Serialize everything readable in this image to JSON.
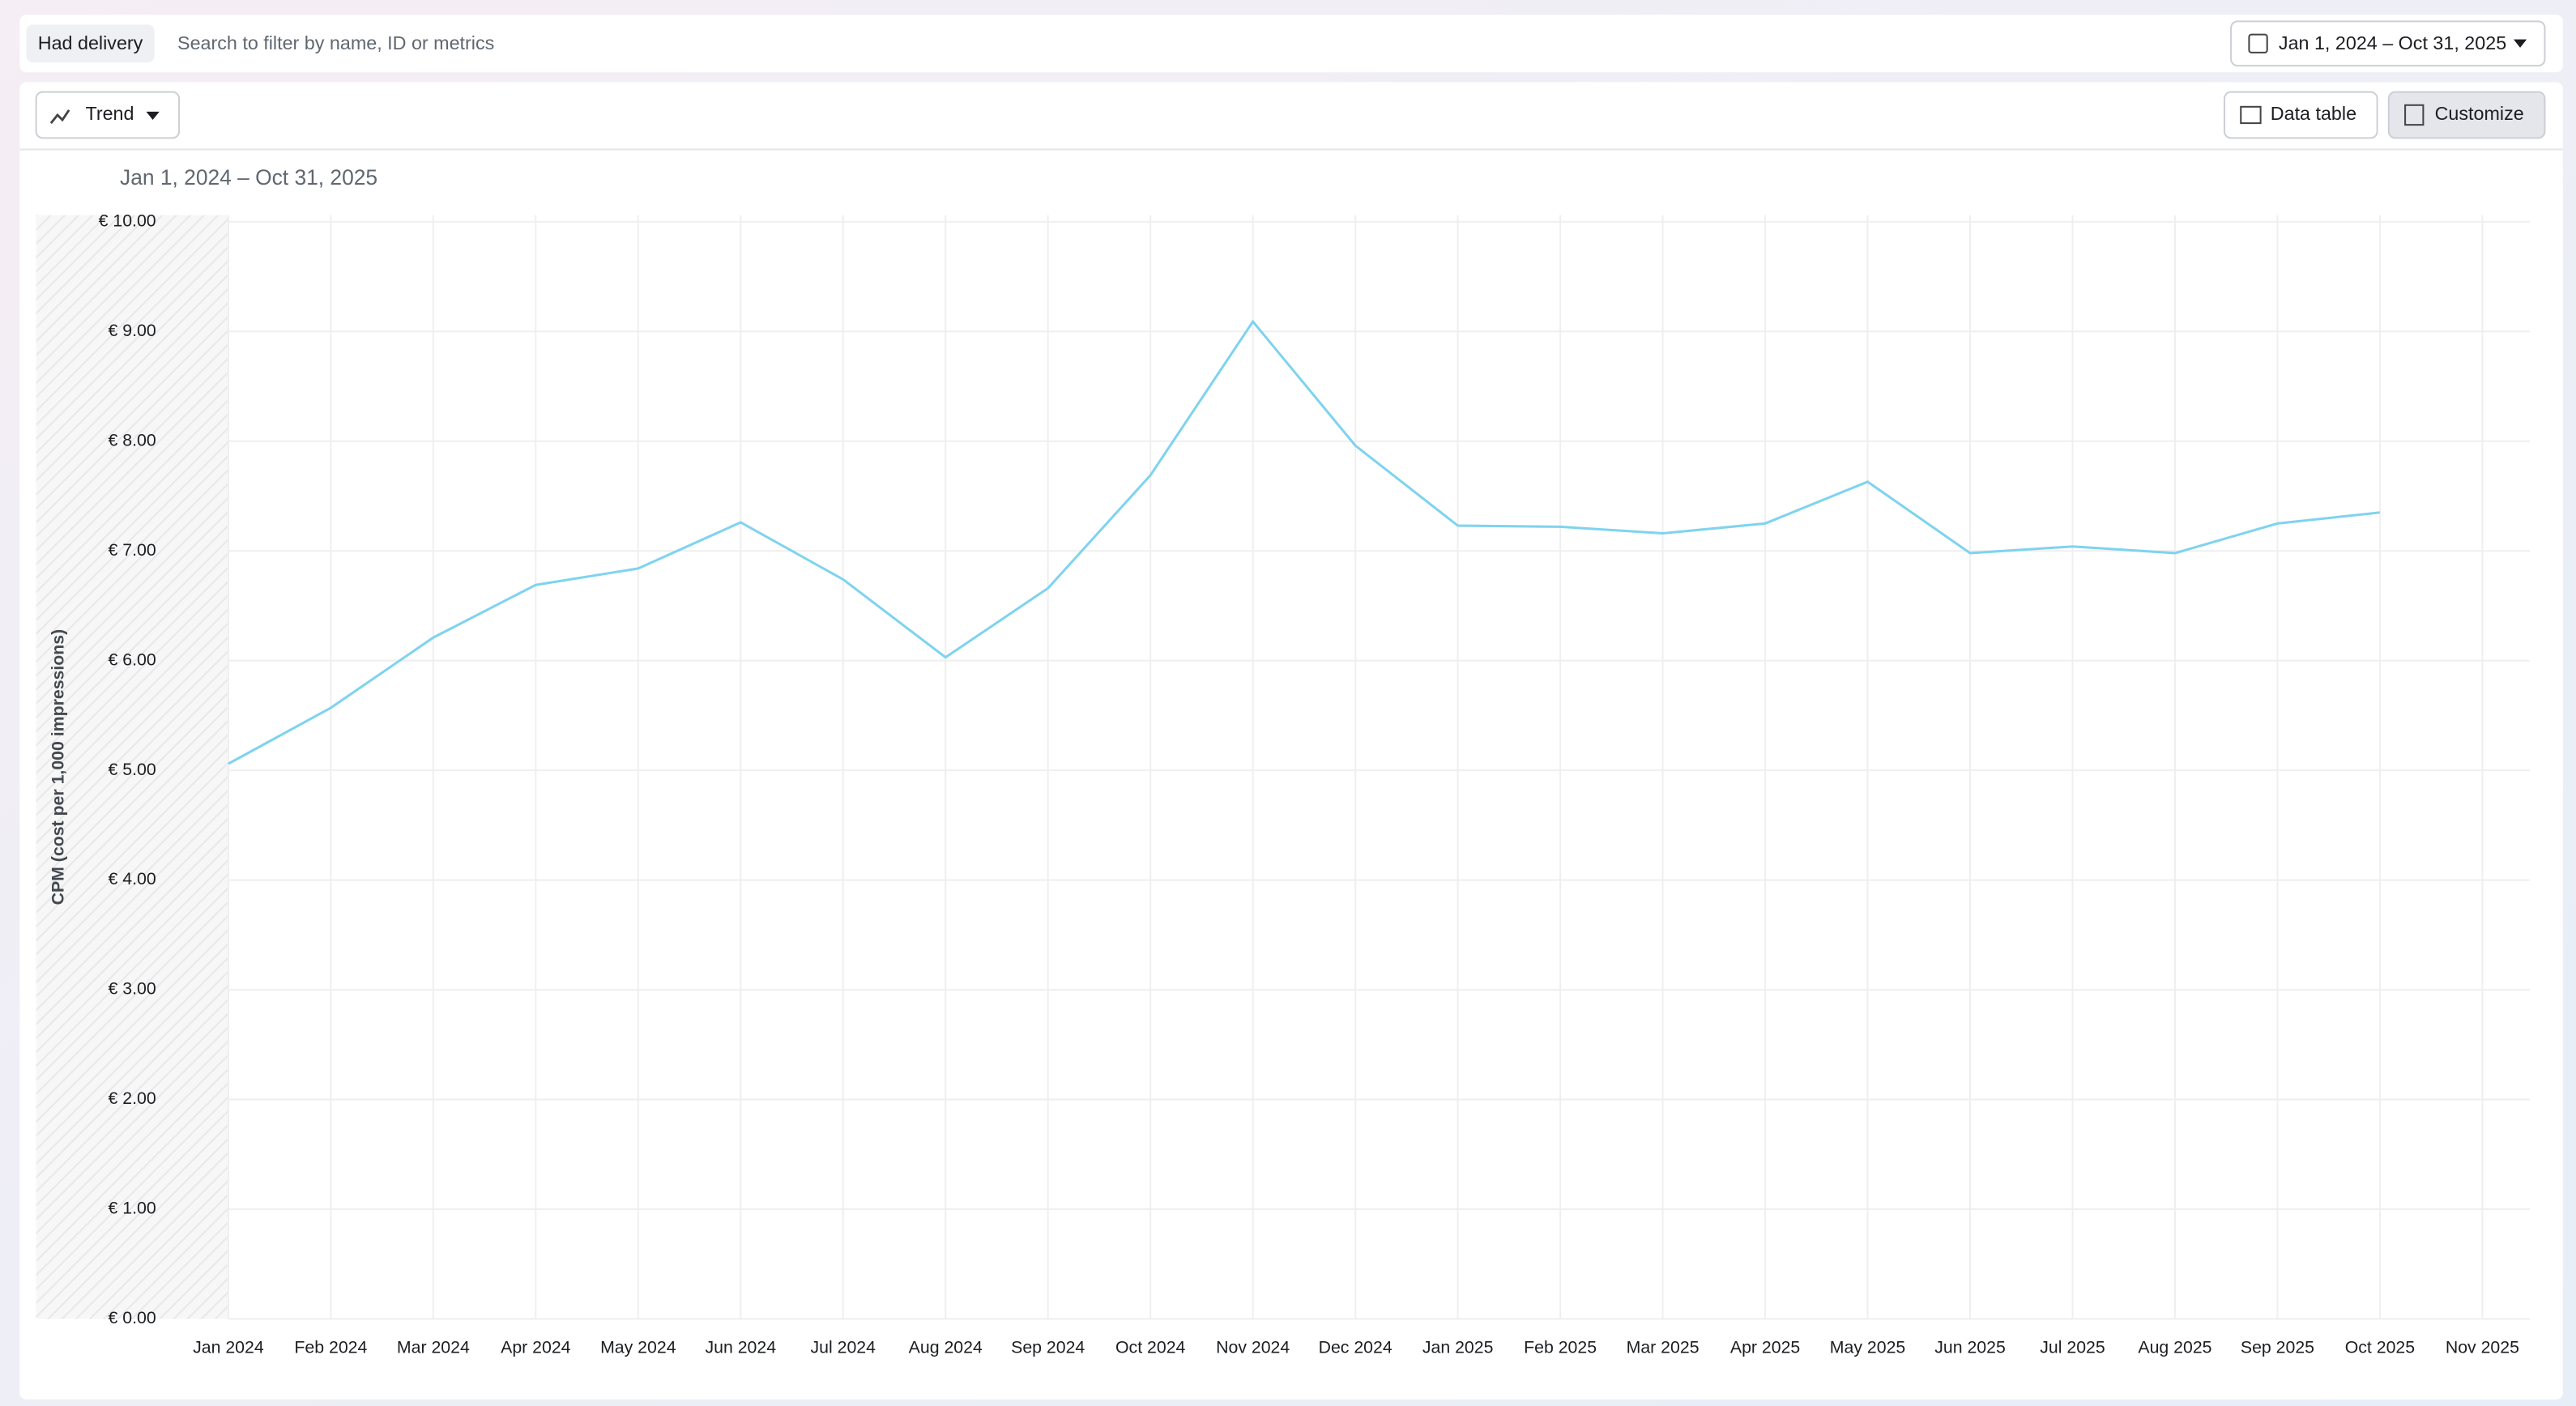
{
  "filter_chip": "Had delivery",
  "search_placeholder": "Search to filter by name, ID or metrics",
  "date_range_button": "Jan 1, 2024 – Oct 31, 2025",
  "view_button": "Trend",
  "data_table_button": "Data table",
  "customize_button": "Customize",
  "chart_data": {
    "type": "line",
    "subtitle": "Jan 1, 2024 – Oct 31, 2025",
    "y_label": "CPM (cost per 1,000 impressions)",
    "categories": [
      "Jan 2024",
      "Feb 2024",
      "Mar 2024",
      "Apr 2024",
      "May 2024",
      "Jun 2024",
      "Jul 2024",
      "Aug 2024",
      "Sep 2024",
      "Oct 2024",
      "Nov 2024",
      "Dec 2024",
      "Jan 2025",
      "Feb 2025",
      "Mar 2025",
      "Apr 2025",
      "May 2025",
      "Jun 2025",
      "Jul 2025",
      "Aug 2025",
      "Sep 2025",
      "Oct 2025",
      "Nov 2025"
    ],
    "series": [
      {
        "color": "#7fd3ef",
        "values": [
          5.06,
          5.57,
          6.21,
          6.69,
          6.84,
          7.26,
          6.74,
          6.03,
          6.66,
          7.69,
          9.09,
          7.96,
          7.23,
          7.22,
          7.16,
          7.25,
          7.63,
          6.98,
          7.04,
          6.98,
          7.25,
          7.35,
          null
        ]
      }
    ],
    "ylim": [
      0,
      10
    ],
    "yticks": [
      {
        "value": 0,
        "label": "€ 0.00"
      },
      {
        "value": 1,
        "label": "€ 1.00"
      },
      {
        "value": 2,
        "label": "€ 2.00"
      },
      {
        "value": 3,
        "label": "€ 3.00"
      },
      {
        "value": 4,
        "label": "€ 4.00"
      },
      {
        "value": 5,
        "label": "€ 5.00"
      },
      {
        "value": 6,
        "label": "€ 6.00"
      },
      {
        "value": 7,
        "label": "€ 7.00"
      },
      {
        "value": 8,
        "label": "€ 8.00"
      },
      {
        "value": 9,
        "label": "€ 9.00"
      },
      {
        "value": 10,
        "label": "€ 10.00"
      }
    ],
    "grid": true
  }
}
